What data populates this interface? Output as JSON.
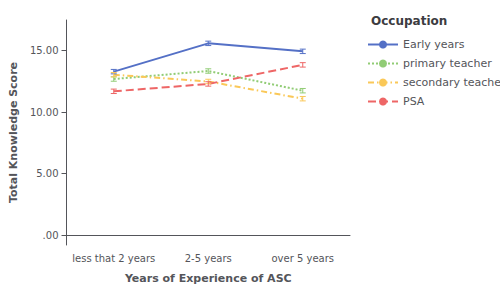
{
  "chart_data": {
    "type": "line",
    "xlabel": "Years of Experience of ASC",
    "ylabel": "Total Knowledge Score",
    "legend_title": "Occupation",
    "categories": [
      "less that 2 years",
      "2-5 years",
      "over 5 years"
    ],
    "series": [
      {
        "name": "Early years",
        "values": [
          13.3,
          15.6,
          14.95
        ],
        "error": [
          0.18,
          0.18,
          0.18
        ],
        "line_style": "solid"
      },
      {
        "name": "primary teacher",
        "values": [
          12.7,
          13.35,
          11.75
        ],
        "error": [
          0.18,
          0.18,
          0.18
        ],
        "line_style": "dotted"
      },
      {
        "name": "secondary teacher",
        "values": [
          13.05,
          12.5,
          11.1
        ],
        "error": [
          0.18,
          0.18,
          0.18
        ],
        "line_style": "dashdot"
      },
      {
        "name": "PSA",
        "values": [
          11.7,
          12.3,
          13.85
        ],
        "error": [
          0.18,
          0.18,
          0.18
        ],
        "line_style": "dashed"
      }
    ],
    "ylim": [
      -0.8,
      17.5
    ],
    "yticks": [
      {
        "value": 0,
        "label": ".00"
      },
      {
        "value": 5,
        "label": "5.00"
      },
      {
        "value": 10,
        "label": "10.00"
      },
      {
        "value": 15,
        "label": "15.00"
      }
    ],
    "legend": "right",
    "grid": false
  }
}
